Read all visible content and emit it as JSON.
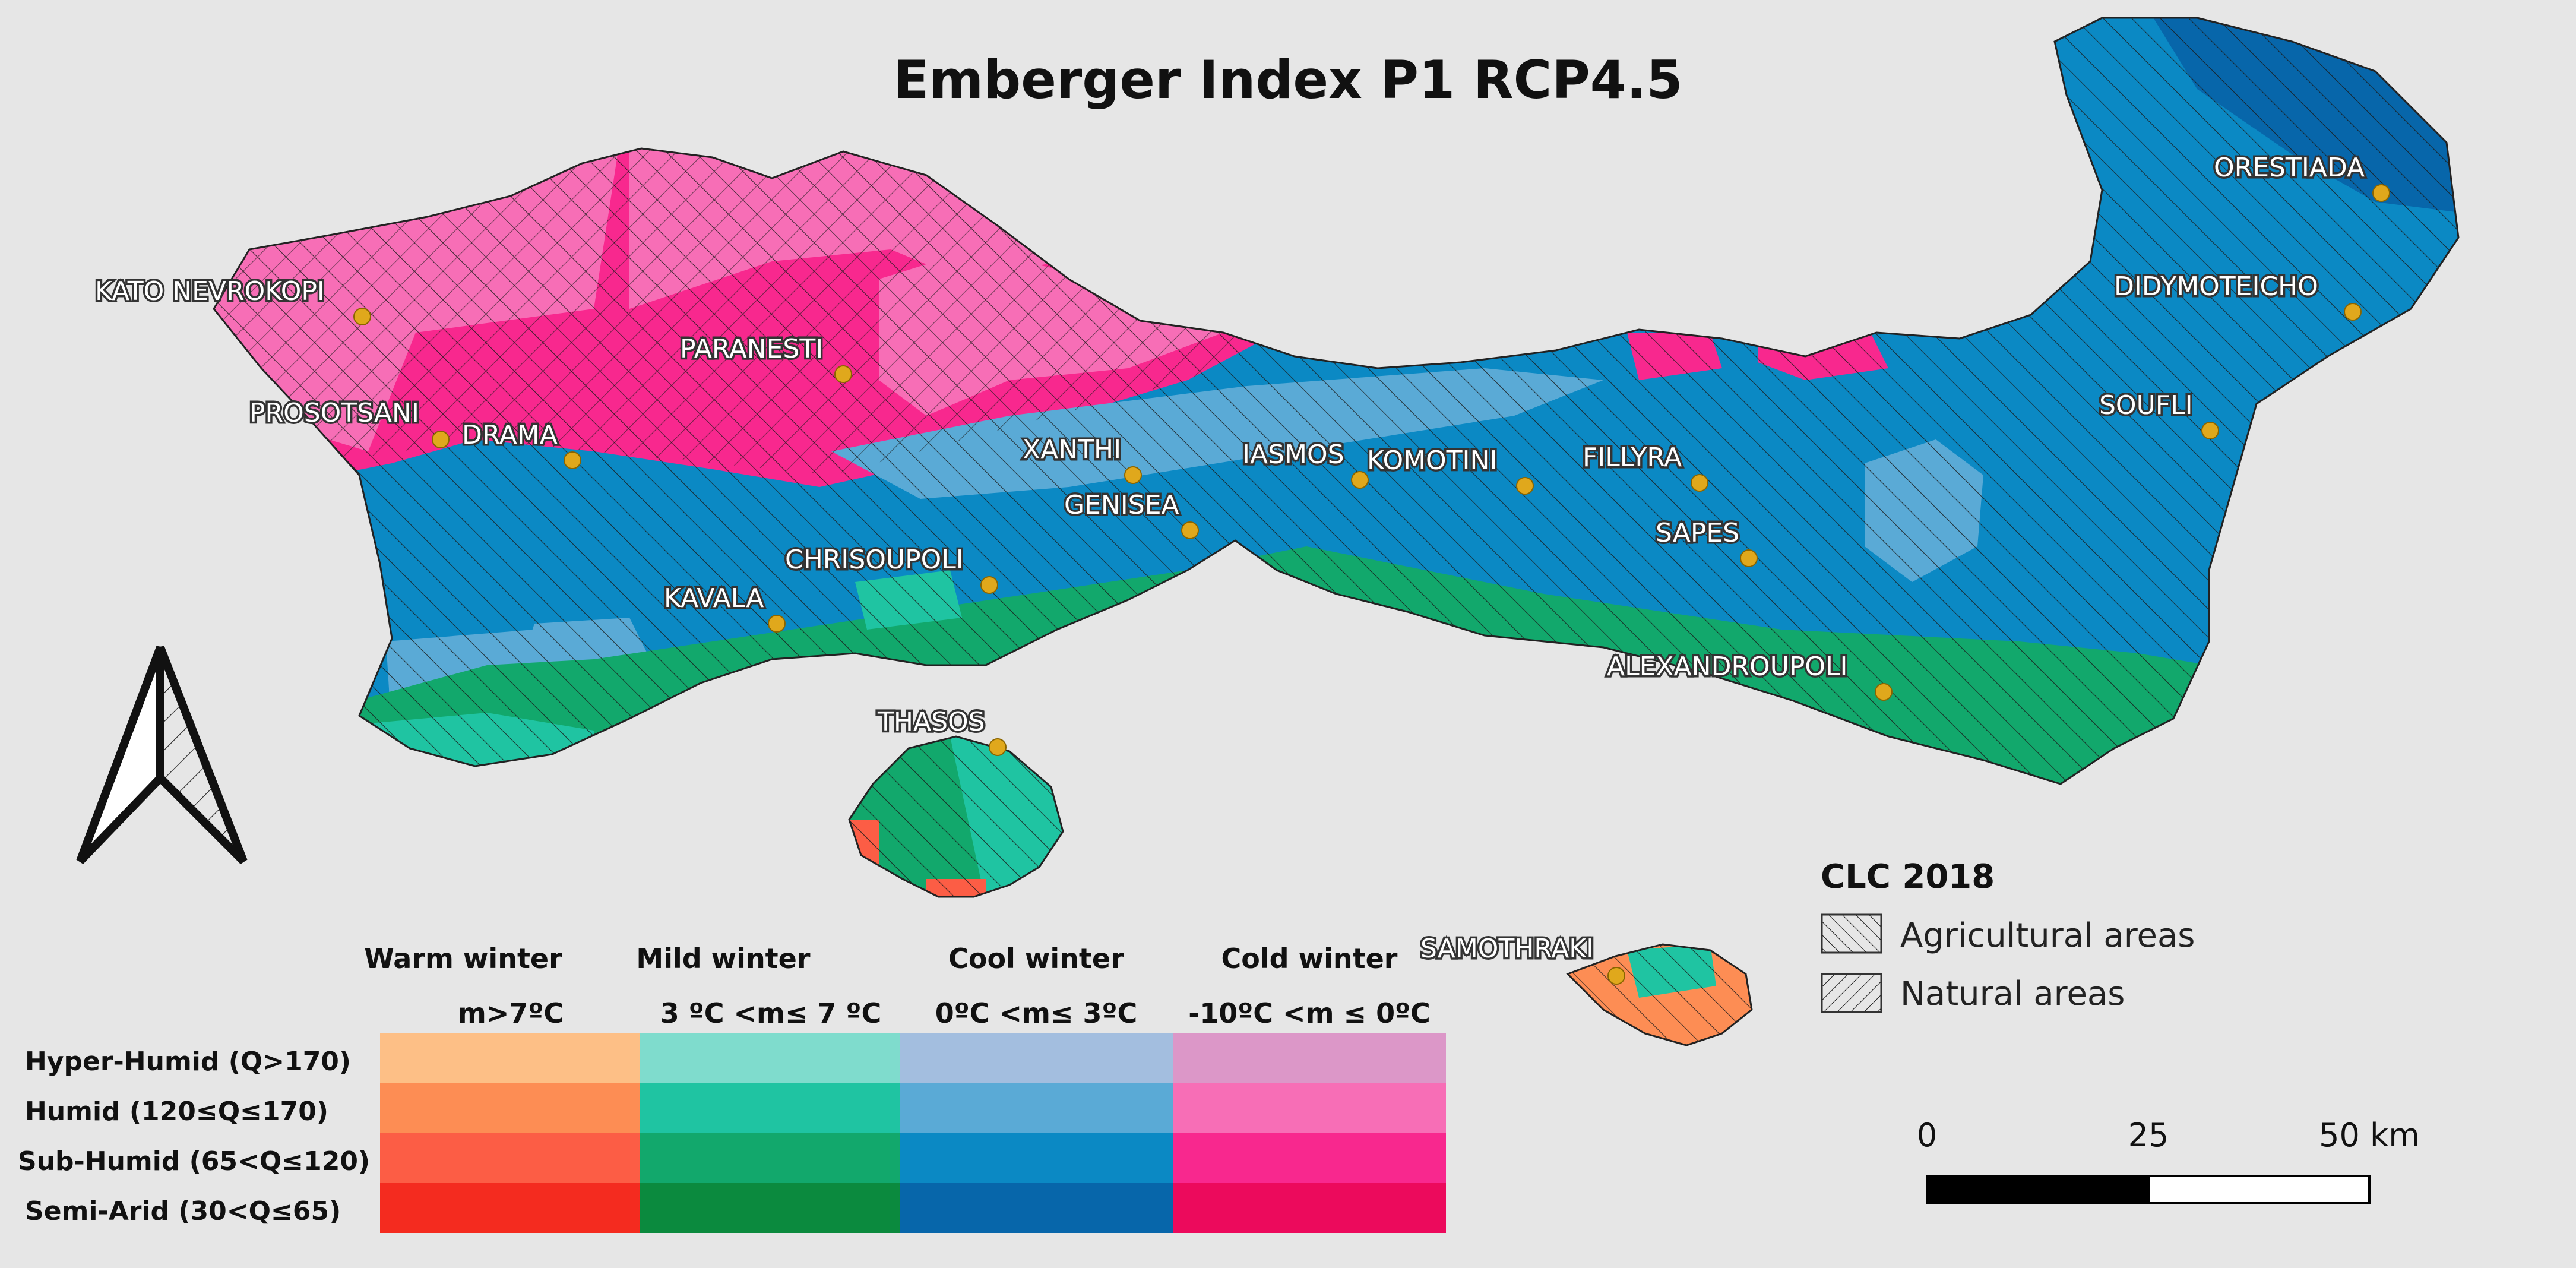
{
  "map": {
    "title": "Emberger Index P1 RCP4.5",
    "colors": {
      "background": "#e6e6e6",
      "city_dot": "#e0a81c"
    }
  },
  "cities": {
    "kato_nevrokopi": "KATO NEVROKOPI",
    "paranesti": "PARANESTI",
    "prosotsani": "PROSOTSANI",
    "drama": "DRAMA",
    "xanthi": "XANTHI",
    "iasmos": "IASMOS",
    "komotini": "KOMOTINI",
    "fillyra": "FILLYRA",
    "genisea": "GENISEA",
    "chrisoupoli": "CHRISOUPOLI",
    "kavala": "KAVALA",
    "sapes": "SAPES",
    "alexandroupoli": "ALEXANDROUPOLI",
    "thasos": "THASOS",
    "samothraki": "SAMOTHRAKI",
    "orestiada": "ORESTIADA",
    "didymoteicho": "DIDYMOTEICHO",
    "soufli": "SOUFLI"
  },
  "legend": {
    "columns": [
      {
        "name": "Warm winter",
        "range": "m>7ºC"
      },
      {
        "name": "Mild winter",
        "range": "3 ºC <m≤ 7 ºC"
      },
      {
        "name": "Cool winter",
        "range": "0ºC <m≤ 3ºC"
      },
      {
        "name": "Cold winter",
        "range": "-10ºC <m ≤ 0ºC"
      }
    ],
    "rows": [
      {
        "label": "Hyper-Humid  (Q>170)",
        "colors": [
          "#fdbf86",
          "#7fdccd",
          "#a3bedf",
          "#dc97c8"
        ]
      },
      {
        "label": "Humid (120≤Q≤170)",
        "colors": [
          "#fd8d54",
          "#1fc4a2",
          "#5aaad6",
          "#f76eb6"
        ]
      },
      {
        "label": "Sub-Humid (65<Q≤120)",
        "colors": [
          "#fc5d45",
          "#12a86c",
          "#0b89c4",
          "#f8288e"
        ]
      },
      {
        "label": "Semi-Arid (30<Q≤65)",
        "colors": [
          "#f42b1f",
          "#0b8a3e",
          "#0766aa",
          "#ec0a5c"
        ]
      }
    ]
  },
  "clc": {
    "title": "CLC 2018",
    "items": [
      "Agricultural areas",
      "Natural areas"
    ]
  },
  "scale": {
    "labels": [
      "0",
      "25",
      "50 km"
    ]
  }
}
